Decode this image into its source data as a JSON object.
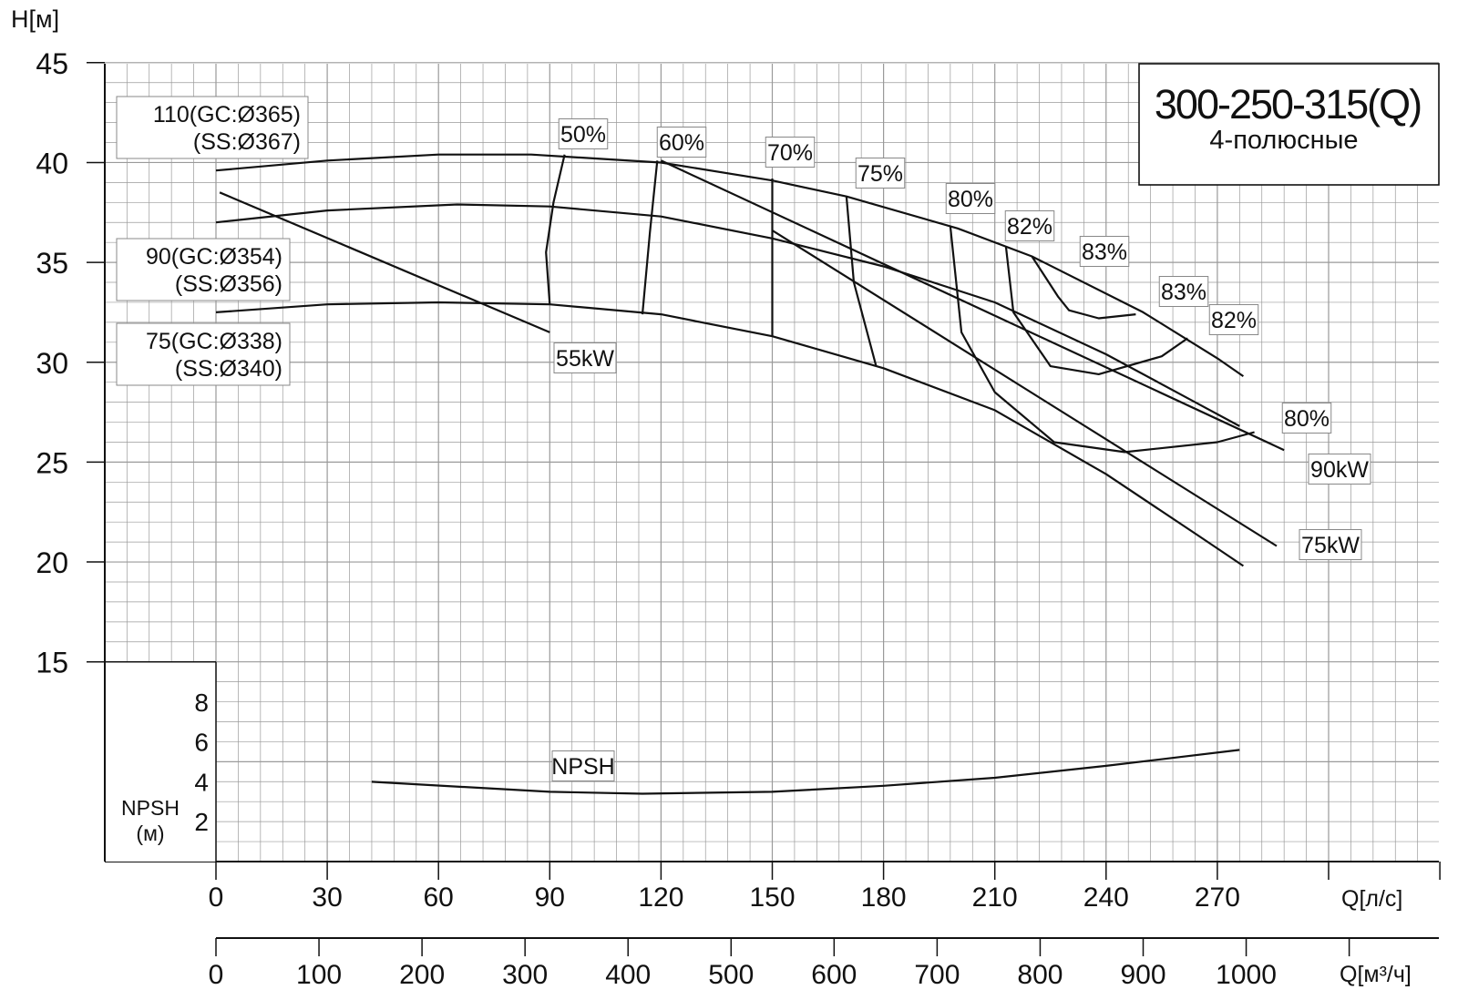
{
  "chart_data": {
    "type": "line",
    "title": "300-250-315(Q)",
    "subtitle": "4-полюсные",
    "ylabel": "H[м]",
    "xlabel_ls": "Q[л/с]",
    "xlabel_m3h": "Q[м³/ч]",
    "npsh_label": [
      "NPSH",
      "(м)"
    ],
    "ylim": [
      15,
      45
    ],
    "xlim": [
      0,
      300
    ],
    "y_ticks": [
      "15",
      "20",
      "25",
      "30",
      "35",
      "40",
      "45"
    ],
    "x_ticks_ls": [
      "0",
      "30",
      "60",
      "90",
      "120",
      "150",
      "180",
      "210",
      "240",
      "270"
    ],
    "x_ticks_m3h": [
      "0",
      "100",
      "200",
      "300",
      "400",
      "500",
      "600",
      "700",
      "800",
      "900",
      "1000"
    ],
    "npsh_ticks": [
      "2",
      "4",
      "6",
      "8"
    ],
    "grid": true,
    "head_curves": [
      {
        "name_line1": "110(GC:Ø365)",
        "name_line2": "(SS:Ø367)",
        "x": [
          0,
          30,
          60,
          85,
          120,
          150,
          170,
          200,
          220,
          250,
          270,
          277
        ],
        "y": [
          39.6,
          40.1,
          40.4,
          40.4,
          40.0,
          39.1,
          38.3,
          36.7,
          35.3,
          32.5,
          30.2,
          29.3
        ]
      },
      {
        "name_line1": "90(GC:Ø354)",
        "name_line2": "(SS:Ø356)",
        "x": [
          0,
          30,
          65,
          90,
          120,
          150,
          180,
          210,
          240,
          265,
          276
        ],
        "y": [
          37.0,
          37.6,
          37.9,
          37.8,
          37.3,
          36.2,
          34.8,
          33.0,
          30.4,
          27.9,
          26.8
        ]
      },
      {
        "name_line1": "75(GC:Ø338)",
        "name_line2": "(SS:Ø340)",
        "x": [
          0,
          30,
          60,
          90,
          120,
          150,
          180,
          210,
          240,
          265,
          277
        ],
        "y": [
          32.5,
          32.9,
          33.0,
          32.9,
          32.4,
          31.3,
          29.7,
          27.6,
          24.4,
          21.3,
          19.8
        ]
      }
    ],
    "power_curves": [
      {
        "label": "55kW",
        "x": [
          1,
          90
        ],
        "y": [
          38.5,
          31.5
        ]
      },
      {
        "label": "90kW",
        "x": [
          120,
          288
        ],
        "y": [
          40.1,
          25.6
        ]
      },
      {
        "label": "75kW",
        "x": [
          150,
          286
        ],
        "y": [
          36.6,
          20.8
        ]
      }
    ],
    "efficiency_labels": [
      "50%",
      "60%",
      "70%",
      "75%",
      "80%",
      "82%",
      "83%",
      "83%",
      "82%",
      "80%"
    ],
    "efficiency_curves": [
      {
        "x": [
          94,
          91,
          89,
          90
        ],
        "y": [
          40.4,
          38.0,
          35.5,
          32.9
        ]
      },
      {
        "x": [
          119,
          117,
          115
        ],
        "y": [
          40.1,
          36.5,
          32.4
        ]
      },
      {
        "x": [
          150,
          150,
          150
        ],
        "y": [
          39.2,
          35.0,
          31.3
        ]
      },
      {
        "x": [
          170,
          172,
          178
        ],
        "y": [
          38.3,
          34.0,
          29.8
        ]
      },
      {
        "x": [
          198,
          201,
          210,
          226,
          245,
          270,
          280
        ],
        "y": [
          36.8,
          31.5,
          28.5,
          26.0,
          25.5,
          26.0,
          26.5
        ]
      },
      {
        "x": [
          213,
          215,
          225,
          238,
          255,
          262
        ],
        "y": [
          35.8,
          32.5,
          29.8,
          29.4,
          30.3,
          31.2
        ]
      },
      {
        "x": [
          220,
          227,
          230,
          238,
          248
        ],
        "y": [
          35.3,
          33.3,
          32.6,
          32.2,
          32.4
        ]
      }
    ],
    "npsh_curve": {
      "label": "NPSH",
      "x": [
        42,
        90,
        115,
        150,
        180,
        210,
        240,
        276
      ],
      "y": [
        4.0,
        3.5,
        3.4,
        3.5,
        3.8,
        4.2,
        4.8,
        5.6
      ]
    }
  }
}
